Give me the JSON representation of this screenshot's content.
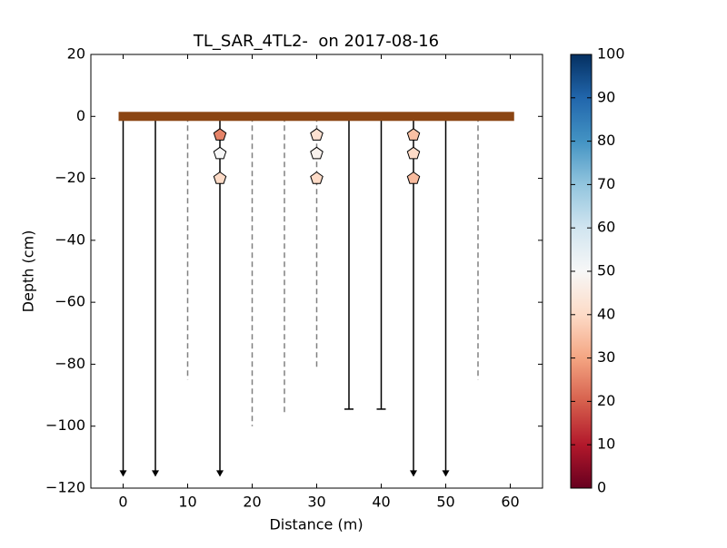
{
  "chart_data": {
    "type": "profile",
    "title": "TL_SAR_4TL2-  on 2017-08-16",
    "xlabel": "Distance (m)",
    "ylabel": "Depth (cm)",
    "xlim": [
      -5,
      65
    ],
    "ylim": [
      -120,
      20
    ],
    "xticks": [
      0,
      10,
      20,
      30,
      40,
      50,
      60
    ],
    "yticks": [
      {
        "value": -120,
        "label": "−120"
      },
      {
        "value": -100,
        "label": "−100"
      },
      {
        "value": -80,
        "label": "−80"
      },
      {
        "value": -60,
        "label": "−60"
      },
      {
        "value": -40,
        "label": "−40"
      },
      {
        "value": -20,
        "label": "−20"
      },
      0,
      20
    ],
    "surface": {
      "x": [
        -0.7,
        60.6
      ],
      "y": 0,
      "color": "#8b4513"
    },
    "series": [
      {
        "x": [
          0,
          5,
          15,
          45,
          50
        ],
        "y": [
          -116,
          -116,
          -116,
          -116,
          -116
        ],
        "line": "solid",
        "end": "arrow",
        "color": "#000000"
      },
      {
        "x": [
          35,
          40
        ],
        "y": [
          -94.5,
          -94.5
        ],
        "line": "solid",
        "end": "cap",
        "color": "#000000"
      },
      {
        "x": [
          10,
          20,
          25,
          30,
          55
        ],
        "y": [
          -85,
          -100,
          -96,
          -81,
          -85
        ],
        "line": "dashed",
        "end": "none",
        "color": "#808080"
      }
    ],
    "points": {
      "marker": "pentagon",
      "x": [
        15,
        15,
        15,
        30,
        30,
        30,
        45,
        45,
        45
      ],
      "y": [
        -6,
        -12,
        -20,
        -6,
        -12,
        -20,
        -6,
        -12,
        -20
      ],
      "values": [
        25,
        50,
        40,
        42,
        48,
        40,
        35,
        40,
        34
      ]
    },
    "colorbar": {
      "colormap": "RdBu",
      "clim": [
        0,
        100
      ],
      "ticks": [
        0,
        10,
        20,
        30,
        40,
        50,
        60,
        70,
        80,
        90,
        100
      ]
    }
  }
}
